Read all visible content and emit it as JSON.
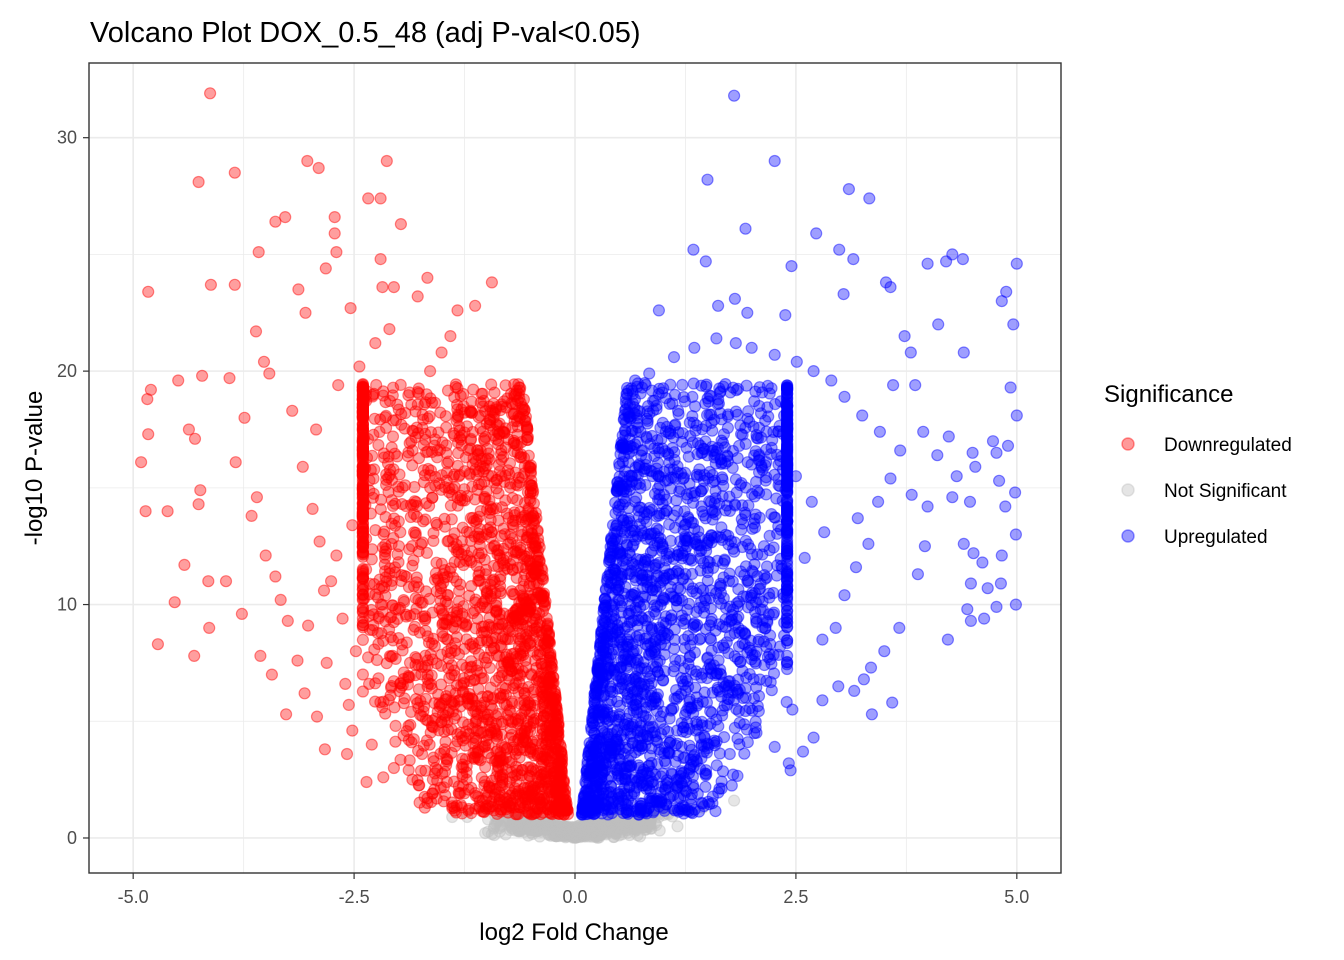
{
  "chart_data": {
    "type": "scatter",
    "title": "Volcano Plot DOX_0.5_48 (adj P-val<0.05)",
    "xlabel": "log2 Fold Change",
    "ylabel": "-log10 P-value",
    "xlim": [
      -5.5,
      5.5
    ],
    "ylim": [
      -1.5,
      33.2
    ],
    "x_ticks": [
      -5.0,
      -2.5,
      0.0,
      2.5,
      5.0
    ],
    "x_tick_labels": [
      "-5.0",
      "-2.5",
      "0.0",
      "2.5",
      "5.0"
    ],
    "y_ticks": [
      0,
      10,
      20,
      30
    ],
    "y_tick_labels": [
      "0",
      "10",
      "20",
      "30"
    ],
    "grid": true,
    "legend": {
      "title": "Significance",
      "placement": "right",
      "entries": [
        "Downregulated",
        "Not Significant",
        "Upregulated"
      ]
    },
    "colors": {
      "Downregulated": "#ff0000",
      "Not Significant": "#bebebe",
      "Upregulated": "#0000ff"
    },
    "series": [
      {
        "name": "Downregulated",
        "points": [
          [
            -4.13,
            31.9
          ],
          [
            -4.26,
            28.1
          ],
          [
            -3.85,
            28.5
          ],
          [
            -3.03,
            29.0
          ],
          [
            -2.9,
            28.7
          ],
          [
            -2.13,
            29.0
          ],
          [
            -3.28,
            26.6
          ],
          [
            -3.39,
            26.4
          ],
          [
            -2.72,
            26.6
          ],
          [
            -2.72,
            25.9
          ],
          [
            -2.34,
            27.4
          ],
          [
            -2.2,
            27.4
          ],
          [
            -1.97,
            26.3
          ],
          [
            -2.7,
            25.1
          ],
          [
            -3.58,
            25.1
          ],
          [
            -2.2,
            24.8
          ],
          [
            -4.83,
            23.4
          ],
          [
            -4.12,
            23.7
          ],
          [
            -3.85,
            23.7
          ],
          [
            -2.82,
            24.4
          ],
          [
            -3.13,
            23.5
          ],
          [
            -1.67,
            24.0
          ],
          [
            -0.94,
            23.8
          ],
          [
            -2.18,
            23.6
          ],
          [
            -2.05,
            23.6
          ],
          [
            -1.78,
            23.2
          ],
          [
            -1.13,
            22.8
          ],
          [
            -2.54,
            22.7
          ],
          [
            -3.05,
            22.5
          ],
          [
            -1.33,
            22.6
          ],
          [
            -4.49,
            19.6
          ],
          [
            -4.22,
            19.8
          ],
          [
            -3.91,
            19.7
          ],
          [
            -4.8,
            19.2
          ],
          [
            -4.84,
            18.8
          ],
          [
            -4.83,
            17.3
          ],
          [
            -4.37,
            17.5
          ],
          [
            -4.3,
            17.1
          ],
          [
            -4.91,
            16.1
          ],
          [
            -3.84,
            16.1
          ],
          [
            -4.24,
            14.9
          ],
          [
            -4.26,
            14.3
          ],
          [
            -4.61,
            14.0
          ],
          [
            -4.86,
            14.0
          ],
          [
            -4.42,
            11.7
          ],
          [
            -4.15,
            11.0
          ],
          [
            -3.95,
            11.0
          ],
          [
            -4.53,
            10.1
          ],
          [
            -4.72,
            8.3
          ],
          [
            -4.31,
            7.8
          ],
          [
            -4.14,
            9.0
          ],
          [
            -3.77,
            9.6
          ],
          [
            -3.6,
            14.6
          ],
          [
            -3.66,
            13.8
          ],
          [
            -3.5,
            12.1
          ],
          [
            -3.39,
            11.2
          ],
          [
            -3.33,
            10.2
          ],
          [
            -3.25,
            9.3
          ],
          [
            -3.56,
            7.8
          ],
          [
            -3.43,
            7.0
          ],
          [
            -3.27,
            5.3
          ],
          [
            -3.74,
            18.0
          ],
          [
            -3.52,
            20.4
          ],
          [
            -3.61,
            21.7
          ],
          [
            -3.46,
            19.9
          ],
          [
            -3.2,
            18.3
          ],
          [
            -2.81,
            7.5
          ],
          [
            -2.6,
            6.6
          ],
          [
            -2.56,
            5.7
          ],
          [
            -2.52,
            4.6
          ],
          [
            -2.58,
            3.6
          ],
          [
            -2.36,
            2.4
          ],
          [
            -2.05,
            3.0
          ],
          [
            -2.17,
            2.6
          ],
          [
            -1.84,
            2.5
          ],
          [
            -1.67,
            1.5
          ],
          [
            -1.85,
            4.1
          ],
          [
            -2.3,
            4.0
          ],
          [
            -2.83,
            3.8
          ],
          [
            -2.92,
            5.2
          ],
          [
            -3.06,
            6.2
          ],
          [
            -3.14,
            7.6
          ],
          [
            -3.02,
            9.1
          ],
          [
            -2.84,
            10.6
          ],
          [
            -2.7,
            12.1
          ],
          [
            -2.52,
            13.4
          ],
          [
            -2.4,
            14.6
          ],
          [
            -2.28,
            15.4
          ],
          [
            -2.16,
            16.3
          ],
          [
            -2.06,
            17.2
          ],
          [
            -1.92,
            18.2
          ],
          [
            -1.78,
            19.1
          ],
          [
            -1.64,
            20.0
          ],
          [
            -1.51,
            20.8
          ],
          [
            -1.41,
            21.5
          ],
          [
            -2.68,
            19.4
          ],
          [
            -2.44,
            20.2
          ],
          [
            -2.26,
            21.2
          ],
          [
            -2.1,
            21.8
          ],
          [
            -2.93,
            17.5
          ],
          [
            -3.08,
            15.9
          ],
          [
            -2.97,
            14.1
          ],
          [
            -2.89,
            12.7
          ],
          [
            -2.76,
            11.0
          ],
          [
            -2.63,
            9.4
          ],
          [
            -2.48,
            8.0
          ],
          [
            -2.33,
            6.6
          ],
          [
            -2.18,
            5.6
          ],
          [
            -2.03,
            4.8
          ],
          [
            -1.88,
            4.2
          ],
          [
            -1.73,
            3.6
          ],
          [
            -1.58,
            3.0
          ],
          [
            -1.45,
            2.4
          ],
          [
            -1.31,
            1.9
          ]
        ],
        "cloud": {
          "count": 2200,
          "x_range": [
            -2.4,
            -0.05
          ],
          "y_range": [
            1.0,
            19.5
          ],
          "note": "dense"
        }
      },
      {
        "name": "Upregulated",
        "points": [
          [
            1.8,
            31.8
          ],
          [
            2.26,
            29.0
          ],
          [
            1.5,
            28.2
          ],
          [
            3.1,
            27.8
          ],
          [
            3.33,
            27.4
          ],
          [
            1.93,
            26.1
          ],
          [
            2.73,
            25.9
          ],
          [
            1.34,
            25.2
          ],
          [
            2.99,
            25.2
          ],
          [
            3.15,
            24.8
          ],
          [
            4.27,
            25.0
          ],
          [
            4.39,
            24.8
          ],
          [
            3.99,
            24.6
          ],
          [
            4.2,
            24.7
          ],
          [
            5.0,
            24.6
          ],
          [
            2.45,
            24.5
          ],
          [
            1.48,
            24.7
          ],
          [
            3.52,
            23.8
          ],
          [
            3.57,
            23.6
          ],
          [
            4.88,
            23.4
          ],
          [
            4.83,
            23.0
          ],
          [
            3.04,
            23.3
          ],
          [
            1.81,
            23.1
          ],
          [
            0.95,
            22.6
          ],
          [
            1.62,
            22.8
          ],
          [
            1.95,
            22.5
          ],
          [
            2.38,
            22.4
          ],
          [
            4.11,
            22.0
          ],
          [
            4.96,
            22.0
          ],
          [
            3.73,
            21.5
          ],
          [
            4.4,
            20.8
          ],
          [
            3.8,
            20.8
          ],
          [
            3.6,
            19.4
          ],
          [
            3.85,
            19.4
          ],
          [
            4.93,
            19.3
          ],
          [
            3.94,
            17.4
          ],
          [
            4.23,
            17.2
          ],
          [
            4.73,
            17.0
          ],
          [
            5.0,
            18.1
          ],
          [
            4.9,
            16.8
          ],
          [
            4.77,
            16.5
          ],
          [
            4.5,
            16.5
          ],
          [
            4.1,
            16.4
          ],
          [
            4.53,
            15.9
          ],
          [
            4.32,
            15.5
          ],
          [
            4.8,
            15.3
          ],
          [
            4.98,
            14.8
          ],
          [
            4.27,
            14.6
          ],
          [
            4.87,
            14.2
          ],
          [
            4.47,
            14.4
          ],
          [
            3.99,
            14.2
          ],
          [
            3.81,
            14.7
          ],
          [
            4.4,
            12.6
          ],
          [
            4.51,
            12.2
          ],
          [
            3.96,
            12.5
          ],
          [
            4.83,
            12.1
          ],
          [
            4.99,
            13.0
          ],
          [
            4.61,
            11.8
          ],
          [
            3.88,
            11.3
          ],
          [
            4.82,
            10.9
          ],
          [
            4.48,
            10.9
          ],
          [
            4.67,
            10.7
          ],
          [
            4.44,
            9.8
          ],
          [
            4.77,
            9.9
          ],
          [
            4.99,
            10.0
          ],
          [
            4.63,
            9.4
          ],
          [
            4.48,
            9.3
          ],
          [
            4.22,
            8.5
          ],
          [
            3.67,
            9.0
          ],
          [
            3.5,
            8.0
          ],
          [
            3.35,
            7.3
          ],
          [
            3.27,
            6.8
          ],
          [
            3.36,
            5.3
          ],
          [
            3.59,
            5.8
          ],
          [
            3.16,
            6.3
          ],
          [
            2.8,
            5.9
          ],
          [
            2.98,
            6.5
          ],
          [
            2.46,
            5.5
          ],
          [
            2.26,
            3.9
          ],
          [
            2.42,
            3.2
          ],
          [
            2.44,
            2.9
          ],
          [
            2.58,
            3.7
          ],
          [
            2.7,
            4.3
          ],
          [
            2.8,
            8.5
          ],
          [
            2.95,
            9.0
          ],
          [
            3.05,
            10.4
          ],
          [
            3.18,
            11.6
          ],
          [
            3.32,
            12.6
          ],
          [
            3.2,
            13.7
          ],
          [
            3.43,
            14.4
          ],
          [
            3.57,
            15.4
          ],
          [
            3.68,
            16.6
          ],
          [
            3.45,
            17.4
          ],
          [
            3.25,
            18.1
          ],
          [
            3.05,
            18.9
          ],
          [
            2.9,
            19.6
          ],
          [
            2.7,
            20.0
          ],
          [
            2.51,
            20.4
          ],
          [
            2.26,
            20.7
          ],
          [
            2.0,
            21.0
          ],
          [
            1.82,
            21.2
          ],
          [
            1.6,
            21.4
          ],
          [
            1.35,
            21.0
          ],
          [
            1.12,
            20.6
          ],
          [
            0.84,
            19.9
          ],
          [
            0.68,
            19.6
          ],
          [
            2.5,
            15.5
          ],
          [
            2.68,
            14.4
          ],
          [
            2.82,
            13.1
          ],
          [
            2.6,
            12.0
          ],
          [
            2.4,
            11.1
          ],
          [
            2.2,
            10.3
          ],
          [
            2.05,
            9.4
          ],
          [
            1.92,
            8.3
          ]
        ],
        "cloud": {
          "count": 2200,
          "x_range": [
            0.05,
            2.4
          ],
          "y_range": [
            1.0,
            19.5
          ],
          "note": "dense"
        }
      },
      {
        "name": "Not Significant",
        "points": [
          [
            -1.39,
            0.9
          ],
          [
            -1.22,
            0.9
          ],
          [
            -0.98,
            1.3
          ],
          [
            -0.75,
            1.4
          ],
          [
            -0.55,
            0.7
          ],
          [
            -0.36,
            0.9
          ],
          [
            -0.21,
            0.4
          ],
          [
            -0.07,
            0.2
          ],
          [
            0.04,
            0.3
          ],
          [
            0.18,
            0.5
          ],
          [
            0.33,
            0.8
          ],
          [
            0.52,
            1.1
          ],
          [
            0.75,
            1.2
          ],
          [
            0.95,
            0.9
          ],
          [
            1.16,
            0.5
          ],
          [
            1.29,
            1.2
          ],
          [
            1.45,
            1.3
          ],
          [
            1.8,
            1.6
          ]
        ],
        "cloud": {
          "count": 520,
          "x_range": [
            -1.15,
            1.15
          ],
          "y_range": [
            0.0,
            1.6
          ],
          "note": "near zero"
        }
      }
    ]
  }
}
